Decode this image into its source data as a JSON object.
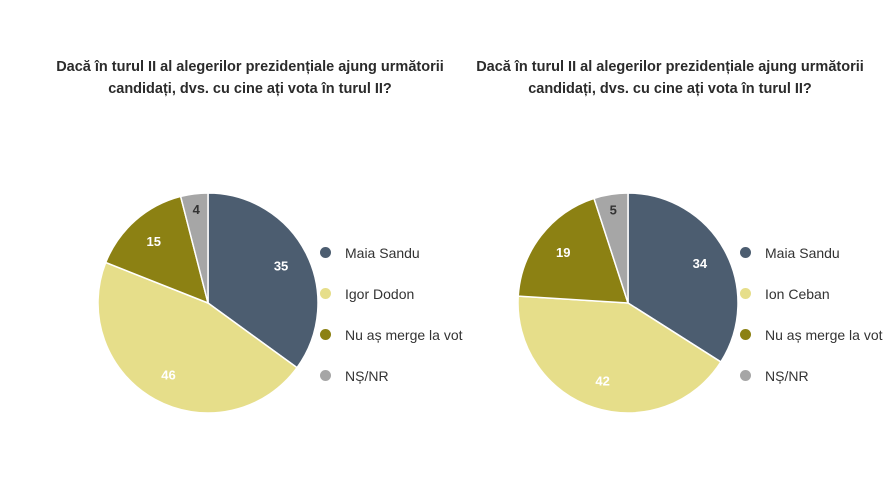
{
  "chart_data": [
    {
      "type": "pie",
      "title": "Dacă în turul II al alegerilor prezidențiale ajung următorii candidați, dvs. cu cine ați vota în turul II?",
      "categories": [
        "Maia Sandu",
        "Igor Dodon",
        "Nu aș merge la vot",
        "NȘ/NR"
      ],
      "values": [
        35,
        46,
        15,
        4
      ],
      "colors": [
        "#4c5d70",
        "#e6de8a",
        "#8c8113",
        "#a6a6a6"
      ],
      "data_labels": [
        "35",
        "46",
        "15",
        "4"
      ],
      "legend_position": "right"
    },
    {
      "type": "pie",
      "title": "Dacă în turul II al alegerilor prezidențiale ajung următorii candidați, dvs. cu cine ați vota în turul II?",
      "categories": [
        "Maia Sandu",
        "Ion Ceban",
        "Nu aș merge la vot",
        "NȘ/NR"
      ],
      "values": [
        34,
        42,
        19,
        5
      ],
      "colors": [
        "#4c5d70",
        "#e6de8a",
        "#8c8113",
        "#a6a6a6"
      ],
      "data_labels": [
        "34",
        "42",
        "19",
        "5"
      ],
      "legend_position": "right"
    }
  ]
}
